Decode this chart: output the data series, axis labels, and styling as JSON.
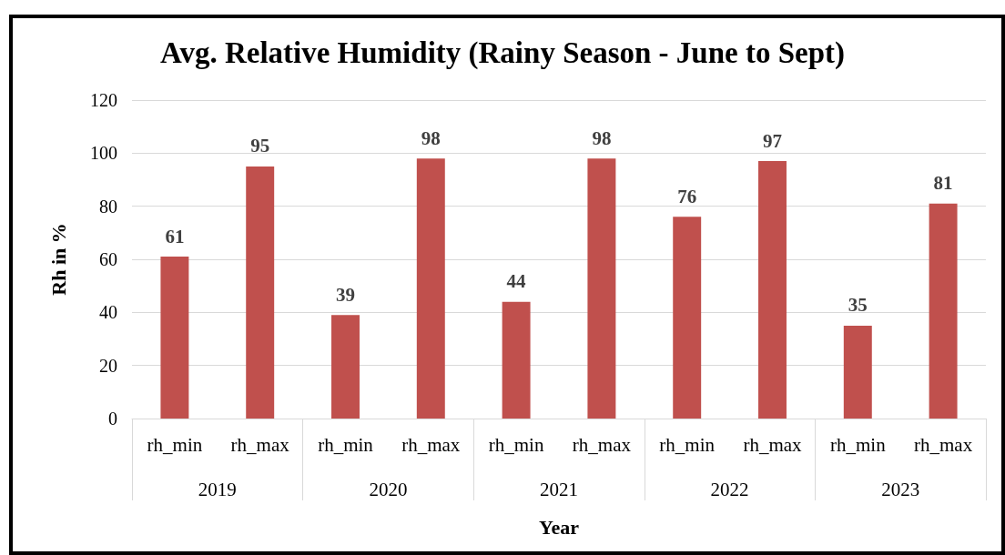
{
  "chart_data": {
    "type": "bar",
    "title": "Avg. Relative Humidity (Rainy Season - June to Sept)",
    "xlabel": "Year",
    "ylabel": "Rh in %",
    "categories": [
      "rh_min",
      "rh_max",
      "rh_min",
      "rh_max",
      "rh_min",
      "rh_max",
      "rh_min",
      "rh_max",
      "rh_min",
      "rh_max"
    ],
    "values": [
      61,
      95,
      39,
      98,
      44,
      98,
      76,
      97,
      35,
      81
    ],
    "color": "#c0504d",
    "annotations": [
      "2019",
      "2020",
      "2021",
      "2022",
      "2023"
    ],
    "ylim": [
      0,
      120
    ],
    "yticks": [
      0,
      20,
      40,
      60,
      80,
      100,
      120
    ],
    "grid": "y",
    "data_labels": true
  }
}
